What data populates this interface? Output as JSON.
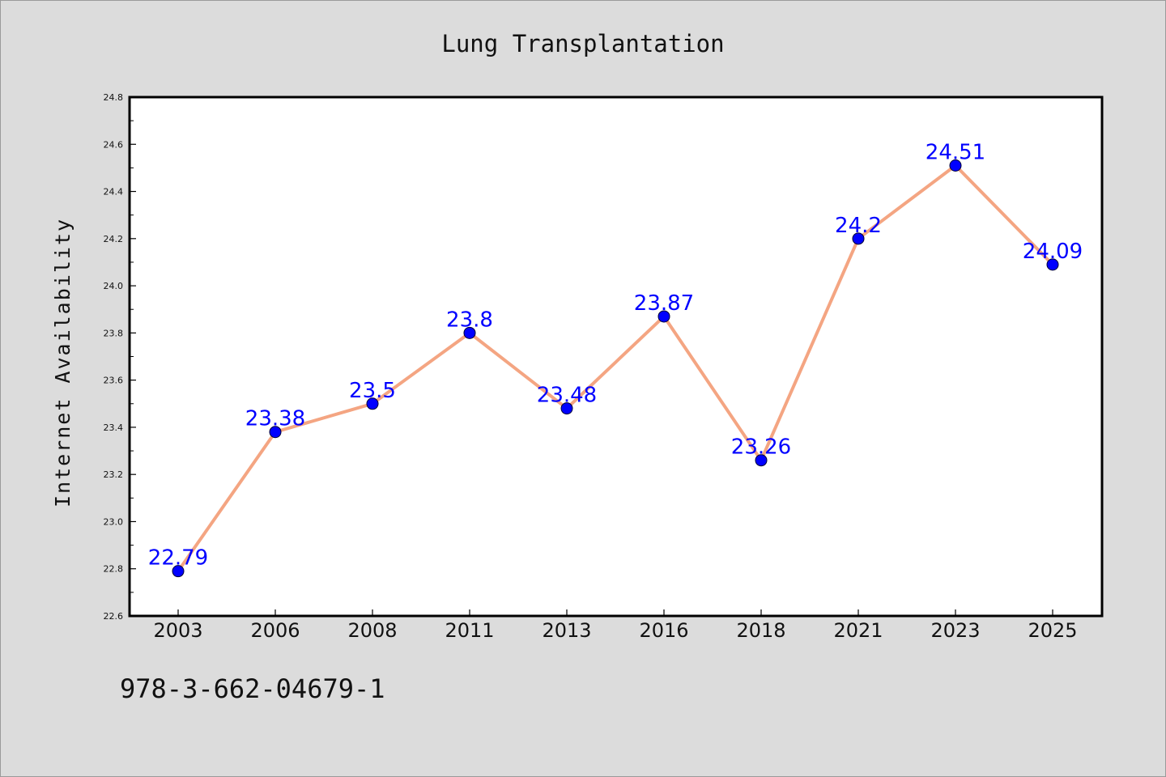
{
  "caption": "978-3-662-04679-1",
  "colors": {
    "background": "#dcdcdc",
    "plot_background": "#ffffff",
    "line": "#f4a582",
    "marker": "#0000ff",
    "label": "#0000ff"
  },
  "chart_data": {
    "type": "line",
    "title": "Lung Transplantation",
    "xlabel": "",
    "ylabel": "Internet Availability",
    "categories": [
      "2003",
      "2006",
      "2008",
      "2011",
      "2013",
      "2016",
      "2018",
      "2021",
      "2023",
      "2025"
    ],
    "series": [
      {
        "values": [
          22.79,
          23.38,
          23.5,
          23.8,
          23.48,
          23.87,
          23.26,
          24.2,
          24.51,
          24.09
        ],
        "labels": [
          "22.79",
          "23.38",
          "23.5",
          "23.8",
          "23.48",
          "23.87",
          "23.26",
          "24.2",
          "24.51",
          "24.09"
        ]
      }
    ],
    "ylim": [
      22.6,
      24.8
    ],
    "yticks": [
      "22.6",
      "22.8",
      "23.0",
      "23.2",
      "23.4",
      "23.6",
      "23.8",
      "24.0",
      "24.2",
      "24.4",
      "24.6",
      "24.8"
    ],
    "grid": false,
    "legend": "none"
  }
}
